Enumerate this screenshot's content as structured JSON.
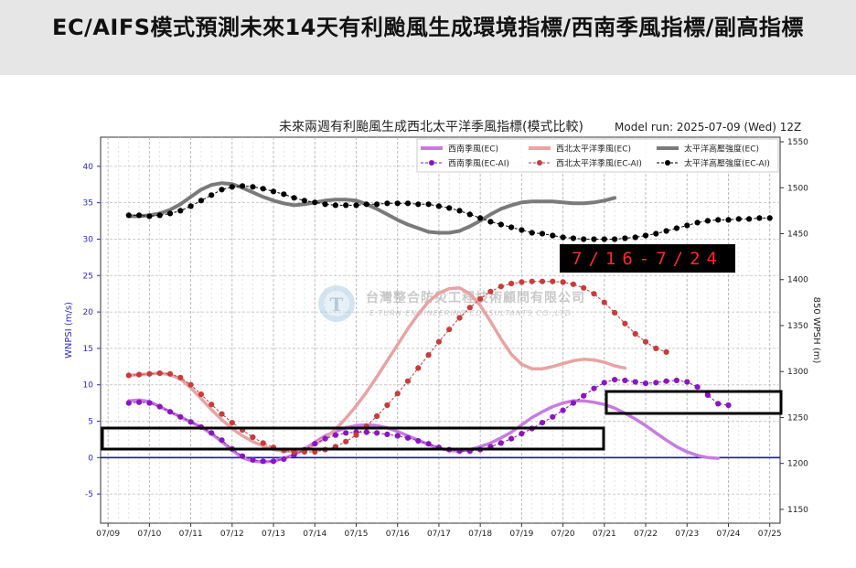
{
  "header": {
    "title": "EC/AIFS模式預測未來14天有利颱風生成環境指標/西南季風指標/副高指標"
  },
  "colors": {
    "swm_ec": "#c77ce0",
    "swm_ai": "#8a16bf",
    "wnp_ec": "#e8a3a3",
    "wnp_ai": "#c83c3c",
    "wpsh_ec": "#7a7a7a",
    "wpsh_ai": "#000000",
    "zero_line": "#1a1aa8",
    "left_axis": "#2a2ad0"
  },
  "watermark": {
    "line1": "台灣整合防災工程技術顧問有限公司",
    "line2": "E-TURN ENGINEERING CONSULTANTS CO.,LTD"
  },
  "annotation": {
    "date_range": "7/16-7/24"
  },
  "chart_data": {
    "type": "line",
    "title": "未來兩週有利颱風生成西北太平洋季風指標(模式比較)",
    "model_run": "Model run: 2025-07-09 (Wed) 12Z",
    "xlabel": "",
    "ylabel": "WNPSI (m/s)",
    "ylabel_right": "850 WPSH (m)",
    "x_ticks": [
      "07/09",
      "07/10",
      "07/11",
      "07/12",
      "07/13",
      "07/14",
      "07/15",
      "07/16",
      "07/17",
      "07/18",
      "07/19",
      "07/20",
      "07/21",
      "07/22",
      "07/23",
      "07/24",
      "07/25"
    ],
    "xlim": [
      "07/09 00Z",
      "07/25 06Z"
    ],
    "x_start": "07/09 12Z",
    "x_step": "6 hours",
    "ylim": [
      -9,
      44
    ],
    "ylim_right": [
      1135,
      1555
    ],
    "y_ticks": [
      -5,
      0,
      5,
      10,
      15,
      20,
      25,
      30,
      35,
      40
    ],
    "y_ticks_right": [
      1150,
      1200,
      1250,
      1300,
      1350,
      1400,
      1450,
      1500,
      1550
    ],
    "grid": true,
    "legend_position": "top-right",
    "legend": [
      {
        "label": "西南季風(EC)",
        "series": "swm_ec"
      },
      {
        "label": "西北太平洋季風(EC)",
        "series": "wnp_ec"
      },
      {
        "label": "太平洋高壓強度(EC)",
        "series": "wpsh_ec"
      },
      {
        "label": "西南季風(EC-AI)",
        "series": "swm_ai"
      },
      {
        "label": "西北太平洋季風(EC-AI)",
        "series": "wnp_ai"
      },
      {
        "label": "太平洋高壓強度(EC-AI)",
        "series": "wpsh_ai"
      }
    ],
    "series": [
      {
        "name": "西南季風(EC)",
        "key": "swm_ec",
        "axis": "left",
        "style": "line",
        "values": [
          7.8,
          7.9,
          7.7,
          7.0,
          6.3,
          5.6,
          4.9,
          4.2,
          3.3,
          2.2,
          1.0,
          0.0,
          -0.5,
          -0.6,
          -0.5,
          -0.1,
          0.4,
          1.2,
          2.1,
          3.0,
          3.6,
          4.1,
          4.4,
          4.5,
          4.4,
          4.1,
          3.6,
          3.0,
          2.4,
          1.8,
          1.3,
          1.0,
          0.9,
          1.1,
          1.5,
          2.0,
          2.7,
          3.5,
          4.5,
          5.5,
          6.3,
          7.0,
          7.5,
          7.8,
          7.8,
          7.6,
          7.3,
          6.8,
          6.1,
          5.3,
          4.4,
          3.4,
          2.4,
          1.5,
          0.8,
          0.3,
          0.0,
          -0.1
        ]
      },
      {
        "name": "西南季風(EC-AI)",
        "key": "swm_ai",
        "axis": "left",
        "style": "dots",
        "values": [
          7.5,
          7.6,
          7.5,
          7.0,
          6.3,
          5.6,
          4.9,
          4.2,
          3.4,
          2.4,
          1.2,
          0.2,
          -0.3,
          -0.5,
          -0.5,
          -0.2,
          0.4,
          1.1,
          1.9,
          2.6,
          3.1,
          3.4,
          3.5,
          3.5,
          3.4,
          3.2,
          3.0,
          2.7,
          2.3,
          1.9,
          1.4,
          1.1,
          0.9,
          0.9,
          1.1,
          1.5,
          2.0,
          2.6,
          3.3,
          4.0,
          4.8,
          5.6,
          6.5,
          7.5,
          8.5,
          9.5,
          10.3,
          10.7,
          10.6,
          10.4,
          10.2,
          10.3,
          10.5,
          10.6,
          10.4,
          9.7,
          8.6,
          7.4,
          7.2
        ]
      },
      {
        "name": "西北太平洋季風(EC)",
        "key": "wnp_ec",
        "axis": "left",
        "style": "line",
        "values": [
          11.3,
          11.4,
          11.5,
          11.6,
          11.4,
          10.8,
          9.6,
          8.1,
          6.6,
          5.2,
          4.0,
          3.0,
          2.2,
          1.6,
          1.1,
          0.9,
          0.9,
          1.2,
          1.8,
          2.7,
          3.9,
          5.4,
          7.1,
          9.0,
          11.1,
          13.3,
          15.5,
          17.7,
          19.7,
          21.4,
          22.6,
          23.2,
          23.3,
          22.5,
          20.9,
          18.7,
          16.3,
          14.2,
          12.8,
          12.2,
          12.2,
          12.5,
          12.9,
          13.3,
          13.5,
          13.4,
          13.1,
          12.6,
          12.3
        ]
      },
      {
        "name": "西北太平洋季風(EC-AI)",
        "key": "wnp_ai",
        "axis": "left",
        "style": "dots",
        "values": [
          11.3,
          11.4,
          11.5,
          11.6,
          11.5,
          11.0,
          10.0,
          8.7,
          7.3,
          6.0,
          4.8,
          3.8,
          2.8,
          2.0,
          1.4,
          1.0,
          0.8,
          0.8,
          0.8,
          1.1,
          1.5,
          2.2,
          3.1,
          4.3,
          5.7,
          7.2,
          8.8,
          10.5,
          12.3,
          14.1,
          15.9,
          17.6,
          19.2,
          20.6,
          21.8,
          22.8,
          23.5,
          23.9,
          24.1,
          24.2,
          24.2,
          24.2,
          24.1,
          23.8,
          23.3,
          22.5,
          21.3,
          19.9,
          18.4,
          17.0,
          15.9,
          15.0,
          14.5
        ]
      },
      {
        "name": "太平洋高壓強度(EC)",
        "key": "wpsh_ec",
        "axis": "right",
        "style": "line",
        "values": [
          1469,
          1469,
          1470,
          1472,
          1476,
          1482,
          1490,
          1498,
          1503,
          1505,
          1504,
          1500,
          1495,
          1490,
          1486,
          1483,
          1481,
          1482,
          1484,
          1486,
          1487,
          1487,
          1486,
          1482,
          1477,
          1471,
          1465,
          1460,
          1456,
          1452,
          1451,
          1451,
          1453,
          1458,
          1464,
          1471,
          1477,
          1481,
          1484,
          1485,
          1485,
          1485,
          1484,
          1483,
          1483,
          1484,
          1486,
          1489
        ]
      },
      {
        "name": "太平洋高壓強度(EC-AI)",
        "key": "wpsh_ai",
        "axis": "right",
        "style": "dots",
        "values": [
          1470,
          1470,
          1469,
          1470,
          1472,
          1475,
          1480,
          1486,
          1492,
          1498,
          1501,
          1502,
          1501,
          1499,
          1496,
          1493,
          1489,
          1486,
          1484,
          1482,
          1481,
          1481,
          1481,
          1482,
          1482,
          1483,
          1483,
          1483,
          1482,
          1482,
          1480,
          1478,
          1475,
          1471,
          1467,
          1463,
          1460,
          1457,
          1454,
          1451,
          1450,
          1448,
          1446,
          1445,
          1444,
          1444,
          1444,
          1444,
          1445,
          1446,
          1448,
          1450,
          1453,
          1456,
          1459,
          1462,
          1464,
          1465,
          1465,
          1466,
          1466,
          1467,
          1467
        ]
      }
    ]
  }
}
